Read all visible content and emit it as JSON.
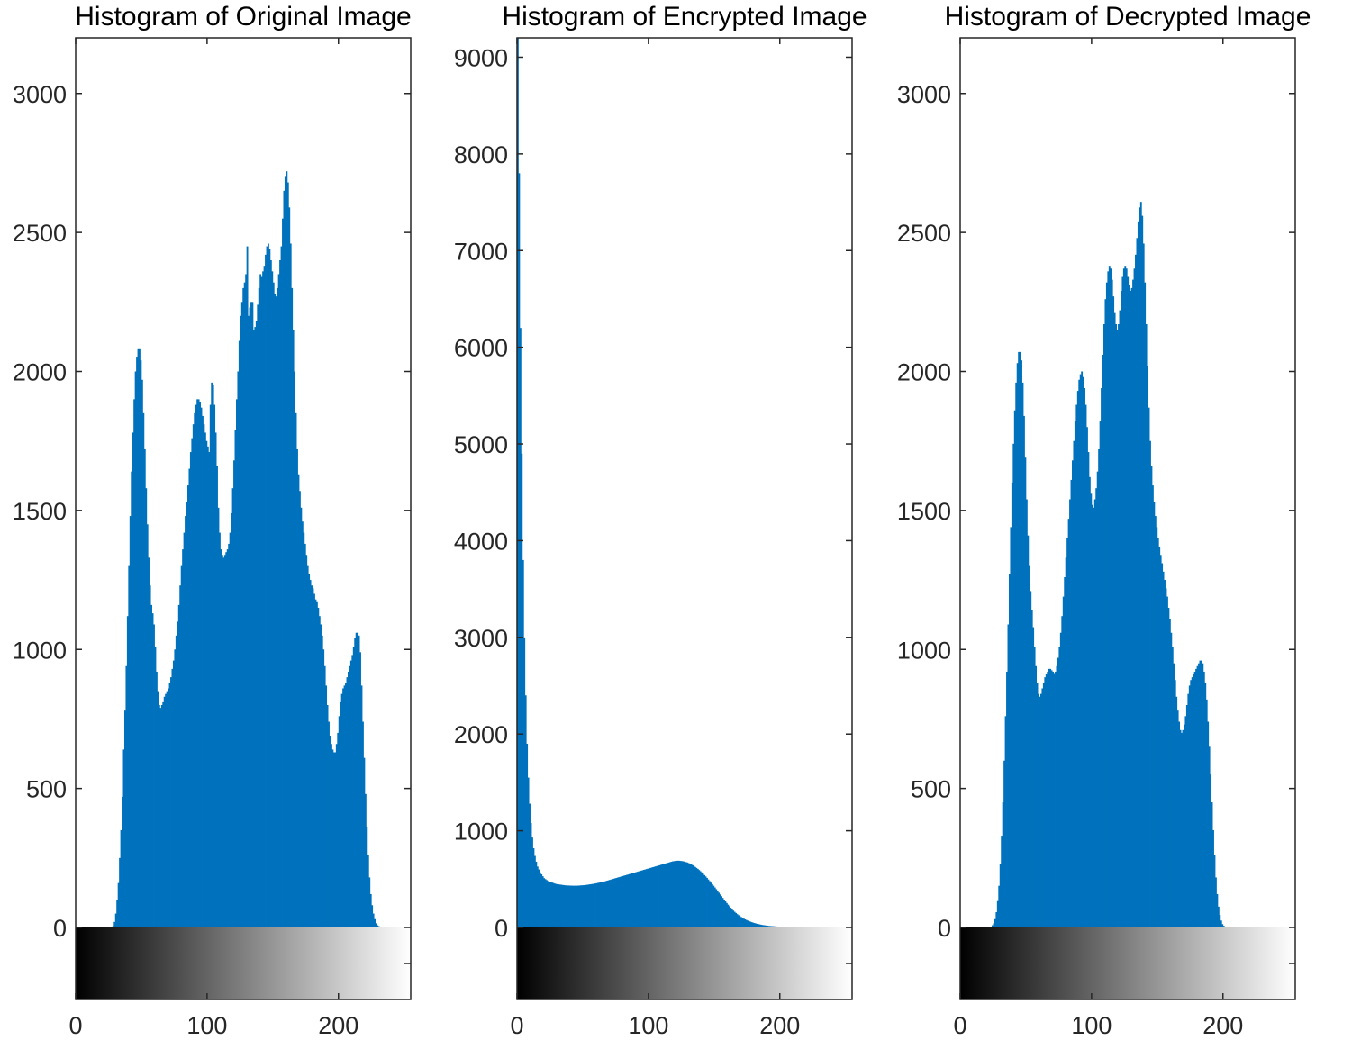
{
  "chart_data": [
    {
      "type": "bar",
      "title": "Histogram of Original Image",
      "xlabel": "",
      "ylabel": "",
      "xlim": [
        0,
        255
      ],
      "ylim": [
        0,
        3200
      ],
      "xticks": [
        "0",
        "100",
        "200"
      ],
      "yticks": [
        "0",
        "500",
        "1000",
        "1500",
        "2000",
        "2500",
        "3000"
      ],
      "colorbar": "grayscale",
      "grid": false,
      "color": "#0072BD",
      "bin_start": 0,
      "values": [
        0,
        0,
        0,
        0,
        0,
        0,
        0,
        0,
        0,
        0,
        0,
        0,
        0,
        0,
        0,
        0,
        0,
        0,
        0,
        0,
        0,
        0,
        0,
        0,
        0,
        0,
        0,
        0,
        5,
        20,
        50,
        100,
        160,
        250,
        350,
        470,
        640,
        780,
        940,
        1120,
        1300,
        1480,
        1640,
        1780,
        1900,
        2000,
        2050,
        2080,
        2080,
        2040,
        1970,
        1850,
        1720,
        1580,
        1450,
        1330,
        1230,
        1160,
        1130,
        1090,
        1010,
        920,
        850,
        800,
        790,
        800,
        810,
        830,
        840,
        850,
        860,
        880,
        900,
        930,
        960,
        1000,
        1050,
        1100,
        1160,
        1230,
        1300,
        1360,
        1420,
        1480,
        1530,
        1590,
        1650,
        1710,
        1760,
        1810,
        1850,
        1880,
        1900,
        1900,
        1890,
        1870,
        1840,
        1810,
        1780,
        1750,
        1730,
        1710,
        1880,
        1960,
        1950,
        1880,
        1780,
        1660,
        1510,
        1420,
        1360,
        1340,
        1330,
        1340,
        1350,
        1360,
        1380,
        1420,
        1490,
        1580,
        1680,
        1790,
        1900,
        2000,
        2110,
        2200,
        2250,
        2300,
        2320,
        2350,
        2450,
        2200,
        2230,
        2250,
        2250,
        2150,
        2160,
        2180,
        2240,
        2300,
        2350,
        2340,
        2360,
        2380,
        2420,
        2450,
        2460,
        2440,
        2400,
        2360,
        2320,
        2280,
        2270,
        2300,
        2350,
        2400,
        2450,
        2550,
        2650,
        2700,
        2720,
        2680,
        2590,
        2460,
        2300,
        2150,
        2000,
        1850,
        1720,
        1630,
        1570,
        1510,
        1460,
        1420,
        1380,
        1340,
        1300,
        1270,
        1250,
        1230,
        1220,
        1200,
        1180,
        1170,
        1150,
        1120,
        1090,
        1050,
        1000,
        940,
        870,
        800,
        740,
        690,
        660,
        640,
        630,
        630,
        660,
        700,
        760,
        810,
        840,
        860,
        870,
        880,
        900,
        920,
        940,
        960,
        980,
        1010,
        1040,
        1060,
        1060,
        1050,
        990,
        870,
        740,
        610,
        480,
        360,
        260,
        180,
        120,
        80,
        50,
        30,
        15,
        8,
        5,
        3,
        2,
        1,
        0,
        0,
        0,
        0,
        0,
        0,
        0,
        0,
        0,
        0,
        0,
        0,
        0,
        0,
        0,
        0,
        0,
        0,
        0,
        0,
        0,
        0,
        0,
        0,
        0,
        0,
        0,
        0,
        0
      ]
    },
    {
      "type": "bar",
      "title": "Histogram of Encrypted Image",
      "xlabel": "",
      "ylabel": "",
      "xlim": [
        0,
        255
      ],
      "ylim": [
        0,
        9200
      ],
      "xticks": [
        "0",
        "100",
        "200"
      ],
      "yticks": [
        "0",
        "1000",
        "2000",
        "3000",
        "4000",
        "5000",
        "6000",
        "7000",
        "8000",
        "9000"
      ],
      "colorbar": "grayscale",
      "grid": false,
      "color": "#0072BD",
      "bin_start": 0,
      "values": [
        9200,
        7800,
        6200,
        4900,
        3800,
        3000,
        2400,
        1900,
        1550,
        1280,
        1080,
        930,
        820,
        740,
        680,
        630,
        600,
        570,
        550,
        530,
        510,
        500,
        490,
        480,
        475,
        470,
        465,
        460,
        455,
        450,
        448,
        446,
        444,
        442,
        440,
        438,
        436,
        435,
        434,
        434,
        433,
        433,
        432,
        432,
        432,
        432,
        433,
        434,
        435,
        436,
        437,
        438,
        440,
        442,
        444,
        446,
        448,
        450,
        452,
        455,
        458,
        461,
        464,
        467,
        470,
        473,
        476,
        480,
        484,
        488,
        492,
        496,
        500,
        504,
        508,
        512,
        516,
        520,
        524,
        528,
        532,
        536,
        540,
        544,
        548,
        552,
        556,
        560,
        564,
        568,
        572,
        576,
        580,
        584,
        588,
        592,
        596,
        600,
        604,
        608,
        612,
        616,
        620,
        624,
        628,
        632,
        636,
        640,
        644,
        648,
        652,
        656,
        660,
        664,
        668,
        672,
        676,
        680,
        684,
        686,
        688,
        690,
        690,
        690,
        688,
        686,
        684,
        680,
        676,
        672,
        666,
        660,
        652,
        644,
        636,
        626,
        616,
        606,
        594,
        582,
        570,
        556,
        542,
        528,
        512,
        496,
        480,
        464,
        448,
        432,
        414,
        396,
        378,
        360,
        342,
        324,
        306,
        288,
        270,
        253,
        236,
        220,
        204,
        189,
        175,
        162,
        150,
        138,
        127,
        117,
        108,
        99,
        91,
        84,
        77,
        71,
        65,
        60,
        55,
        50,
        46,
        42,
        38,
        35,
        32,
        29,
        26,
        24,
        22,
        20,
        18,
        16,
        15,
        14,
        13,
        12,
        11,
        10,
        9,
        8,
        7,
        6,
        6,
        5,
        5,
        4,
        4,
        3,
        3,
        3,
        2,
        2,
        2,
        2,
        1,
        1,
        1,
        1,
        1,
        1,
        0,
        0,
        0,
        0,
        0,
        0,
        0,
        0,
        0,
        0,
        0,
        0,
        0,
        0,
        0,
        0,
        0,
        0,
        0,
        0,
        0,
        0,
        0,
        0,
        0,
        0,
        0,
        0,
        0,
        0,
        0,
        0,
        0,
        0,
        0,
        0,
        0,
        0,
        0,
        0,
        0,
        0,
        0,
        0,
        0,
        0
      ]
    },
    {
      "type": "bar",
      "title": "Histogram of Decrypted Image",
      "xlabel": "",
      "ylabel": "",
      "xlim": [
        0,
        255
      ],
      "ylim": [
        0,
        3200
      ],
      "xticks": [
        "0",
        "100",
        "200"
      ],
      "yticks": [
        "0",
        "500",
        "1000",
        "1500",
        "2000",
        "2500",
        "3000"
      ],
      "colorbar": "grayscale",
      "grid": false,
      "color": "#0072BD",
      "bin_start": 0,
      "values": [
        0,
        0,
        0,
        0,
        0,
        0,
        0,
        0,
        0,
        0,
        0,
        0,
        0,
        0,
        0,
        0,
        0,
        0,
        0,
        0,
        0,
        0,
        0,
        3,
        8,
        15,
        30,
        55,
        95,
        150,
        230,
        330,
        450,
        600,
        760,
        920,
        1090,
        1270,
        1440,
        1600,
        1740,
        1860,
        1960,
        2030,
        2070,
        2070,
        2040,
        1960,
        1840,
        1690,
        1540,
        1410,
        1300,
        1210,
        1140,
        1080,
        1010,
        940,
        880,
        840,
        830,
        840,
        860,
        880,
        900,
        910,
        920,
        930,
        930,
        925,
        920,
        915,
        920,
        940,
        970,
        1010,
        1060,
        1120,
        1190,
        1260,
        1330,
        1400,
        1470,
        1540,
        1610,
        1680,
        1750,
        1820,
        1880,
        1930,
        1970,
        1990,
        2000,
        1980,
        1940,
        1880,
        1800,
        1710,
        1620,
        1560,
        1520,
        1510,
        1540,
        1580,
        1640,
        1720,
        1820,
        1940,
        2060,
        2170,
        2260,
        2320,
        2360,
        2380,
        2370,
        2330,
        2270,
        2210,
        2170,
        2150,
        2170,
        2220,
        2290,
        2340,
        2370,
        2380,
        2370,
        2340,
        2310,
        2290,
        2300,
        2330,
        2370,
        2420,
        2480,
        2540,
        2590,
        2610,
        2560,
        2460,
        2320,
        2170,
        2020,
        1870,
        1750,
        1660,
        1590,
        1530,
        1480,
        1440,
        1400,
        1370,
        1340,
        1310,
        1280,
        1250,
        1220,
        1190,
        1150,
        1110,
        1060,
        1010,
        950,
        890,
        830,
        780,
        740,
        710,
        700,
        710,
        730,
        760,
        800,
        840,
        870,
        890,
        900,
        910,
        920,
        930,
        940,
        950,
        960,
        960,
        950,
        920,
        880,
        820,
        740,
        650,
        550,
        450,
        350,
        260,
        180,
        120,
        75,
        45,
        25,
        12,
        6,
        3,
        1,
        0,
        0,
        0,
        0,
        0,
        0,
        0,
        0,
        0,
        0,
        0,
        0,
        0,
        0,
        0,
        0,
        0,
        0,
        0,
        0,
        0,
        0,
        0,
        0,
        0,
        0,
        0,
        0,
        0,
        0,
        0,
        0,
        0,
        0,
        0,
        0,
        0,
        0,
        0,
        0,
        0,
        0,
        0,
        0,
        0,
        0,
        0,
        0,
        0,
        0,
        0,
        0,
        0,
        0,
        0,
        0,
        0,
        0,
        0,
        0,
        0,
        0
      ]
    }
  ]
}
